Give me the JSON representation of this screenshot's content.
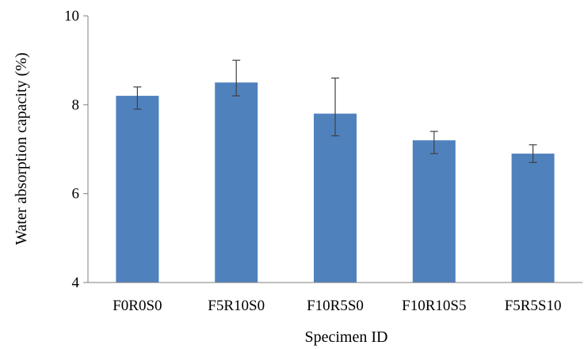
{
  "chart_data": {
    "type": "bar",
    "title": "",
    "xlabel": "Specimen ID",
    "ylabel": "Water absorption capacity (%)",
    "categories": [
      "F0R0S0",
      "F5R10S0",
      "F10R5S0",
      "F10R10S5",
      "F5R5S10"
    ],
    "values": [
      8.2,
      8.5,
      7.8,
      7.2,
      6.9
    ],
    "error_low": [
      7.9,
      8.2,
      7.3,
      6.9,
      6.7
    ],
    "error_high": [
      8.4,
      9.0,
      8.6,
      7.4,
      7.1
    ],
    "ylim": [
      4,
      10
    ],
    "yticks": [
      4,
      6,
      8,
      10
    ],
    "grid": false,
    "legend": "none",
    "bar_color": "#4f81bd",
    "axis_color": "#7f7f7f",
    "error_color": "#404040"
  }
}
